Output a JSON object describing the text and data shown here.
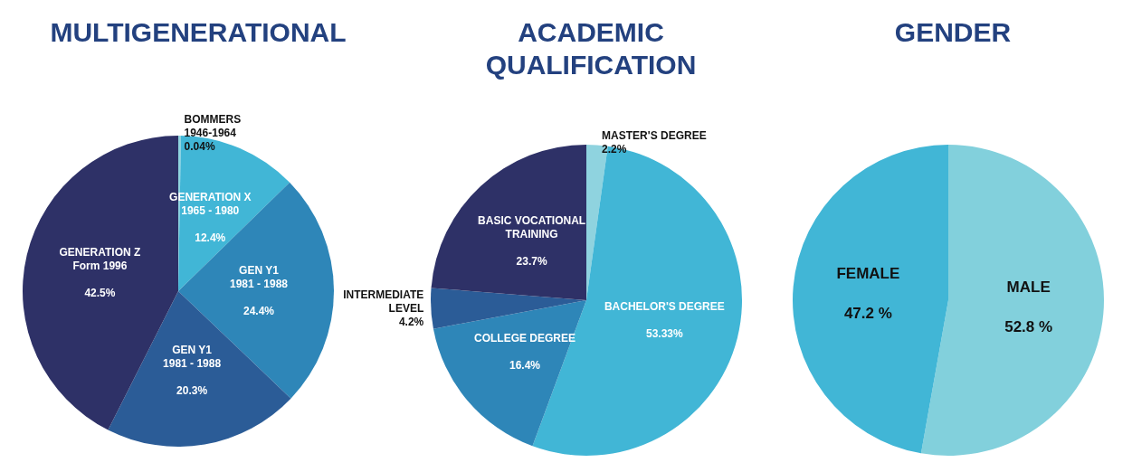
{
  "chart_data": [
    {
      "type": "pie",
      "title": "MULTIGENERATIONAL",
      "categories": [
        "BOMMERS\n1946-1964",
        "GENERATION X\n1965 - 1980",
        "GEN Y1\n1981 - 1988",
        "GEN Y1\n1981 - 1988",
        "GENERATION Z\nForm 1996"
      ],
      "values": [
        0.04,
        12.4,
        24.4,
        20.3,
        42.5
      ],
      "value_labels": [
        "0.04%",
        "12.4%",
        "24.4%",
        "20.3%",
        "42.5%"
      ],
      "colors": [
        "#8fd3df",
        "#41b6d6",
        "#2e86b8",
        "#2b5c97",
        "#2e3167"
      ]
    },
    {
      "type": "pie",
      "title": "ACADEMIC\nQUALIFICATION",
      "categories": [
        "MASTER'S DEGREE",
        "BACHELOR'S DEGREE",
        "COLLEGE DEGREE",
        "INTERMEDIATE\nLEVEL",
        "BASIC VOCATIONAL\nTRAINING"
      ],
      "values": [
        2.2,
        53.33,
        16.4,
        4.2,
        23.7
      ],
      "value_labels": [
        "2.2%",
        "53.33%",
        "16.4%",
        "4.2%",
        "23.7%"
      ],
      "colors": [
        "#8fd3df",
        "#41b6d6",
        "#2e86b8",
        "#2b5c97",
        "#2e3167"
      ]
    },
    {
      "type": "pie",
      "title": "GENDER",
      "categories": [
        "MALE",
        "FEMALE"
      ],
      "values": [
        52.8,
        47.2
      ],
      "value_labels": [
        "52.8 %",
        "47.2 %"
      ],
      "colors": [
        "#82d0dc",
        "#41b6d6"
      ]
    }
  ]
}
